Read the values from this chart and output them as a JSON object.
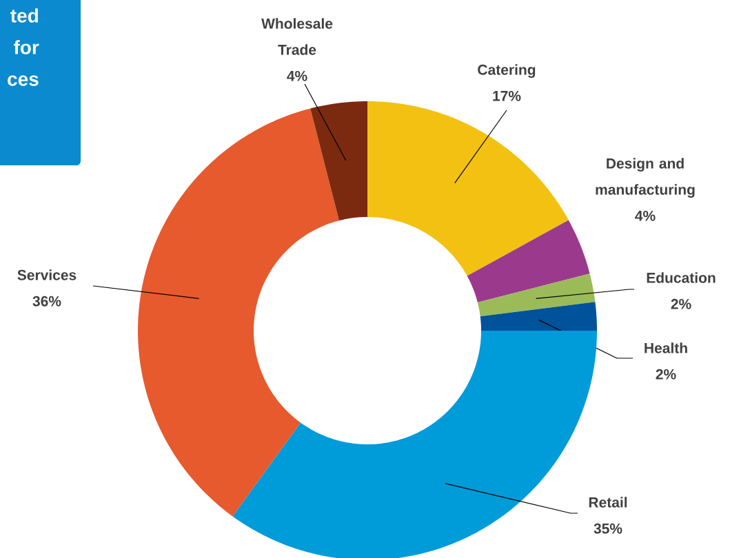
{
  "chart_data": {
    "type": "donut",
    "title": "ted for ces",
    "categories": [
      "Catering",
      "Design and manufacturing",
      "Education",
      "Health",
      "Retail",
      "Services",
      "Wholesale Trade"
    ],
    "values": [
      17,
      4,
      2,
      2,
      35,
      36,
      4
    ],
    "value_labels": [
      "17%",
      "4%",
      "2%",
      "2%",
      "35%",
      "36%",
      "4%"
    ],
    "colors": [
      "#f2c112",
      "#9b3a8c",
      "#9bbb59",
      "#00529b",
      "#009bd9",
      "#e65a2d",
      "#7b2a10"
    ]
  }
}
